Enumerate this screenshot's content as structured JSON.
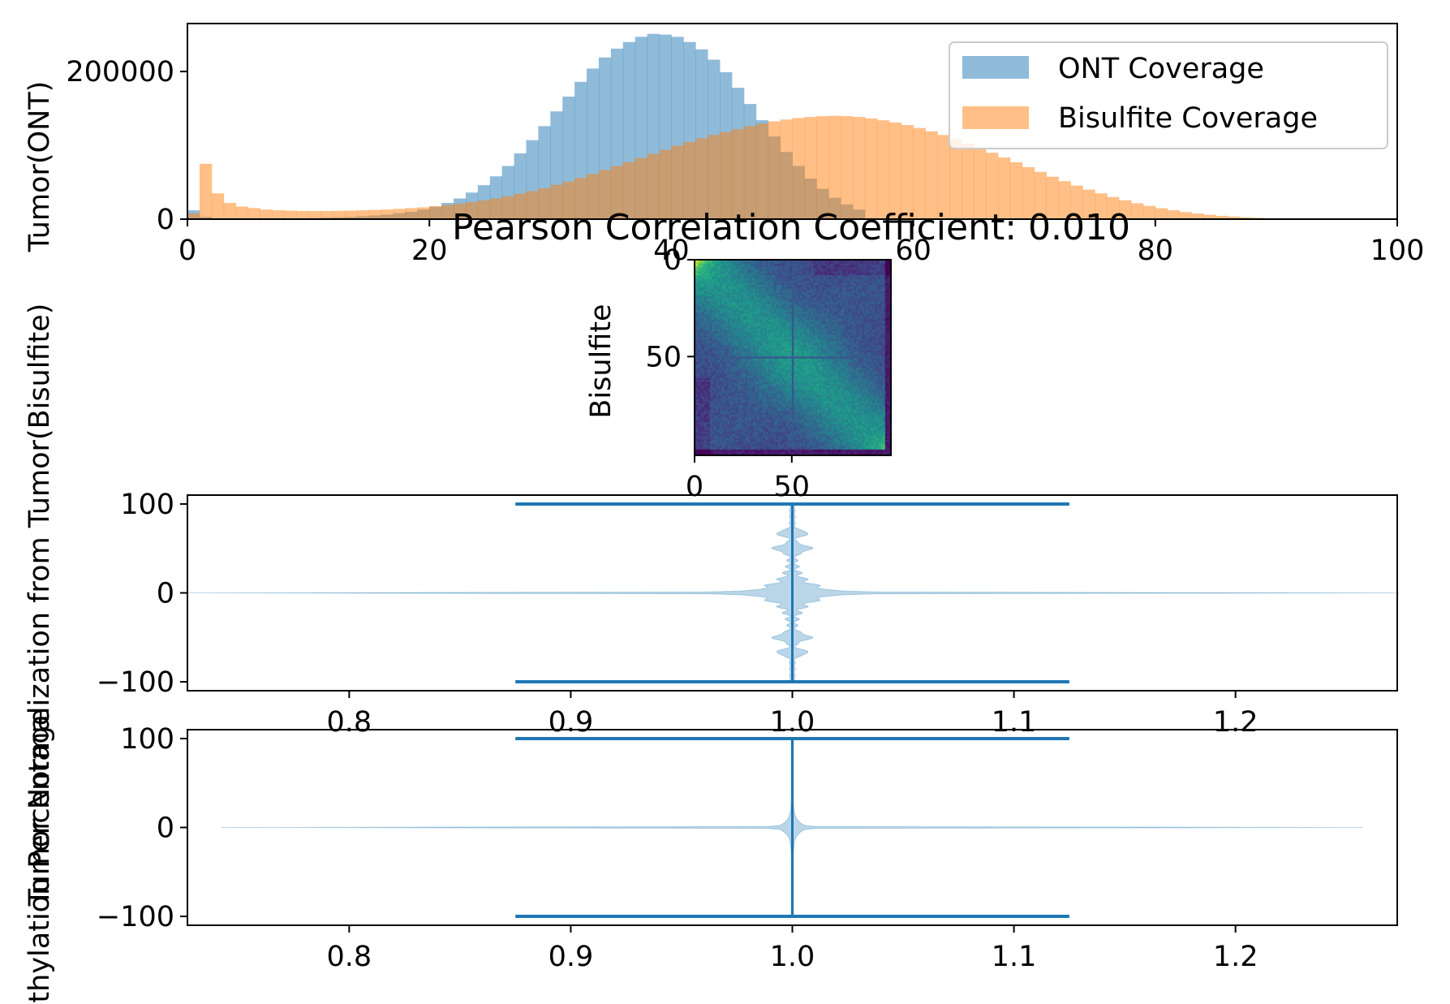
{
  "chart_data": [
    {
      "id": "coverage",
      "type": "bar",
      "subtype": "overlaid-histogram",
      "xlim": [
        0,
        100
      ],
      "ylim": [
        0,
        265000
      ],
      "xticks": [
        "0",
        "20",
        "40",
        "60",
        "80",
        "100"
      ],
      "yticks": [
        "0",
        "200000"
      ],
      "ylabel": "Tumor(ONT)",
      "legend_position": "upper-right",
      "bin_width": 1,
      "series": [
        {
          "name": "ONT Coverage",
          "color": "#1f77b4",
          "alpha": 0.5,
          "x": [
            0,
            1,
            2,
            3,
            4,
            5,
            6,
            7,
            8,
            9,
            10,
            11,
            12,
            13,
            14,
            15,
            16,
            17,
            18,
            19,
            20,
            21,
            22,
            23,
            24,
            25,
            26,
            27,
            28,
            29,
            30,
            31,
            32,
            33,
            34,
            35,
            36,
            37,
            38,
            39,
            40,
            41,
            42,
            43,
            44,
            45,
            46,
            47,
            48,
            49,
            50,
            51,
            52,
            53,
            54,
            55
          ],
          "values": [
            12000,
            3000,
            500,
            500,
            500,
            500,
            500,
            500,
            1000,
            1000,
            1500,
            2000,
            2500,
            3000,
            4000,
            5000,
            6000,
            8000,
            10000,
            13000,
            17000,
            22000,
            28000,
            36000,
            46000,
            58000,
            72000,
            89000,
            107000,
            126000,
            146000,
            166000,
            186000,
            204000,
            219000,
            231000,
            240000,
            247000,
            251000,
            250000,
            247000,
            240000,
            230000,
            216000,
            199000,
            178000,
            156000,
            134000,
            112000,
            91000,
            72000,
            55000,
            41000,
            29000,
            20000,
            13000
          ]
        },
        {
          "name": "Bisulfite Coverage",
          "color": "#ff7f0e",
          "alpha": 0.5,
          "x": [
            0,
            1,
            2,
            3,
            4,
            5,
            6,
            7,
            8,
            9,
            10,
            11,
            12,
            13,
            14,
            15,
            16,
            17,
            18,
            19,
            20,
            21,
            22,
            23,
            24,
            25,
            26,
            27,
            28,
            29,
            30,
            31,
            32,
            33,
            34,
            35,
            36,
            37,
            38,
            39,
            40,
            41,
            42,
            43,
            44,
            45,
            46,
            47,
            48,
            49,
            50,
            51,
            52,
            53,
            54,
            55,
            56,
            57,
            58,
            59,
            60,
            61,
            62,
            63,
            64,
            65,
            66,
            67,
            68,
            69,
            70,
            71,
            72,
            73,
            74,
            75,
            76,
            77,
            78,
            79,
            80,
            81,
            82,
            83,
            84,
            85,
            86,
            87,
            88,
            89
          ],
          "values": [
            8000,
            75000,
            35000,
            22000,
            17000,
            15000,
            13000,
            12000,
            11500,
            11000,
            11000,
            11000,
            11200,
            11500,
            12000,
            12500,
            13000,
            14000,
            15000,
            16000,
            17500,
            19000,
            21000,
            23000,
            25500,
            28000,
            31000,
            34500,
            38000,
            42000,
            46500,
            51000,
            56000,
            61000,
            66500,
            72000,
            77500,
            83000,
            88500,
            94000,
            99500,
            104500,
            109500,
            114000,
            118000,
            122000,
            126000,
            129500,
            132500,
            135000,
            137000,
            138500,
            139500,
            140000,
            139500,
            138500,
            136500,
            134000,
            131000,
            127500,
            123500,
            119000,
            114000,
            108500,
            102500,
            96500,
            90000,
            83500,
            77000,
            70500,
            64000,
            57500,
            51500,
            45500,
            40000,
            35000,
            30000,
            25500,
            21500,
            18000,
            14800,
            12000,
            9600,
            7600,
            5900,
            4500,
            3400,
            2500,
            1800,
            1300
          ]
        }
      ]
    },
    {
      "id": "heatmap",
      "type": "heatmap",
      "title": "Pearson Correlation Coefficient: 0.010",
      "ylabel": "Bisulfite",
      "xlim": [
        0,
        101
      ],
      "ylim": [
        101,
        0
      ],
      "xticks": [
        "0",
        "50"
      ],
      "yticks": [
        "0",
        "50"
      ],
      "colormap": "viridis",
      "matrix_size": 101
    },
    {
      "id": "violin-1",
      "type": "violin",
      "ylabel": "Tumor Normalization from Tumor(Bisulfite)",
      "xlim": [
        0.727,
        1.273
      ],
      "ylim": [
        -110,
        110
      ],
      "xticks": [
        "0.8",
        "0.9",
        "1.0",
        "1.1",
        "1.2"
      ],
      "yticks": [
        "−100",
        "0",
        "100"
      ],
      "position": 1.0,
      "min": -100,
      "max": 100,
      "color": "#1f77b4"
    },
    {
      "id": "violin-2",
      "type": "violin",
      "ylabel": "Methylation Percentage",
      "xlim": [
        0.727,
        1.273
      ],
      "ylim": [
        -110,
        110
      ],
      "xticks": [
        "0.8",
        "0.9",
        "1.0",
        "1.1",
        "1.2"
      ],
      "yticks": [
        "−100",
        "0",
        "100"
      ],
      "position": 1.0,
      "min": -100,
      "max": 100,
      "color": "#1f77b4"
    }
  ]
}
